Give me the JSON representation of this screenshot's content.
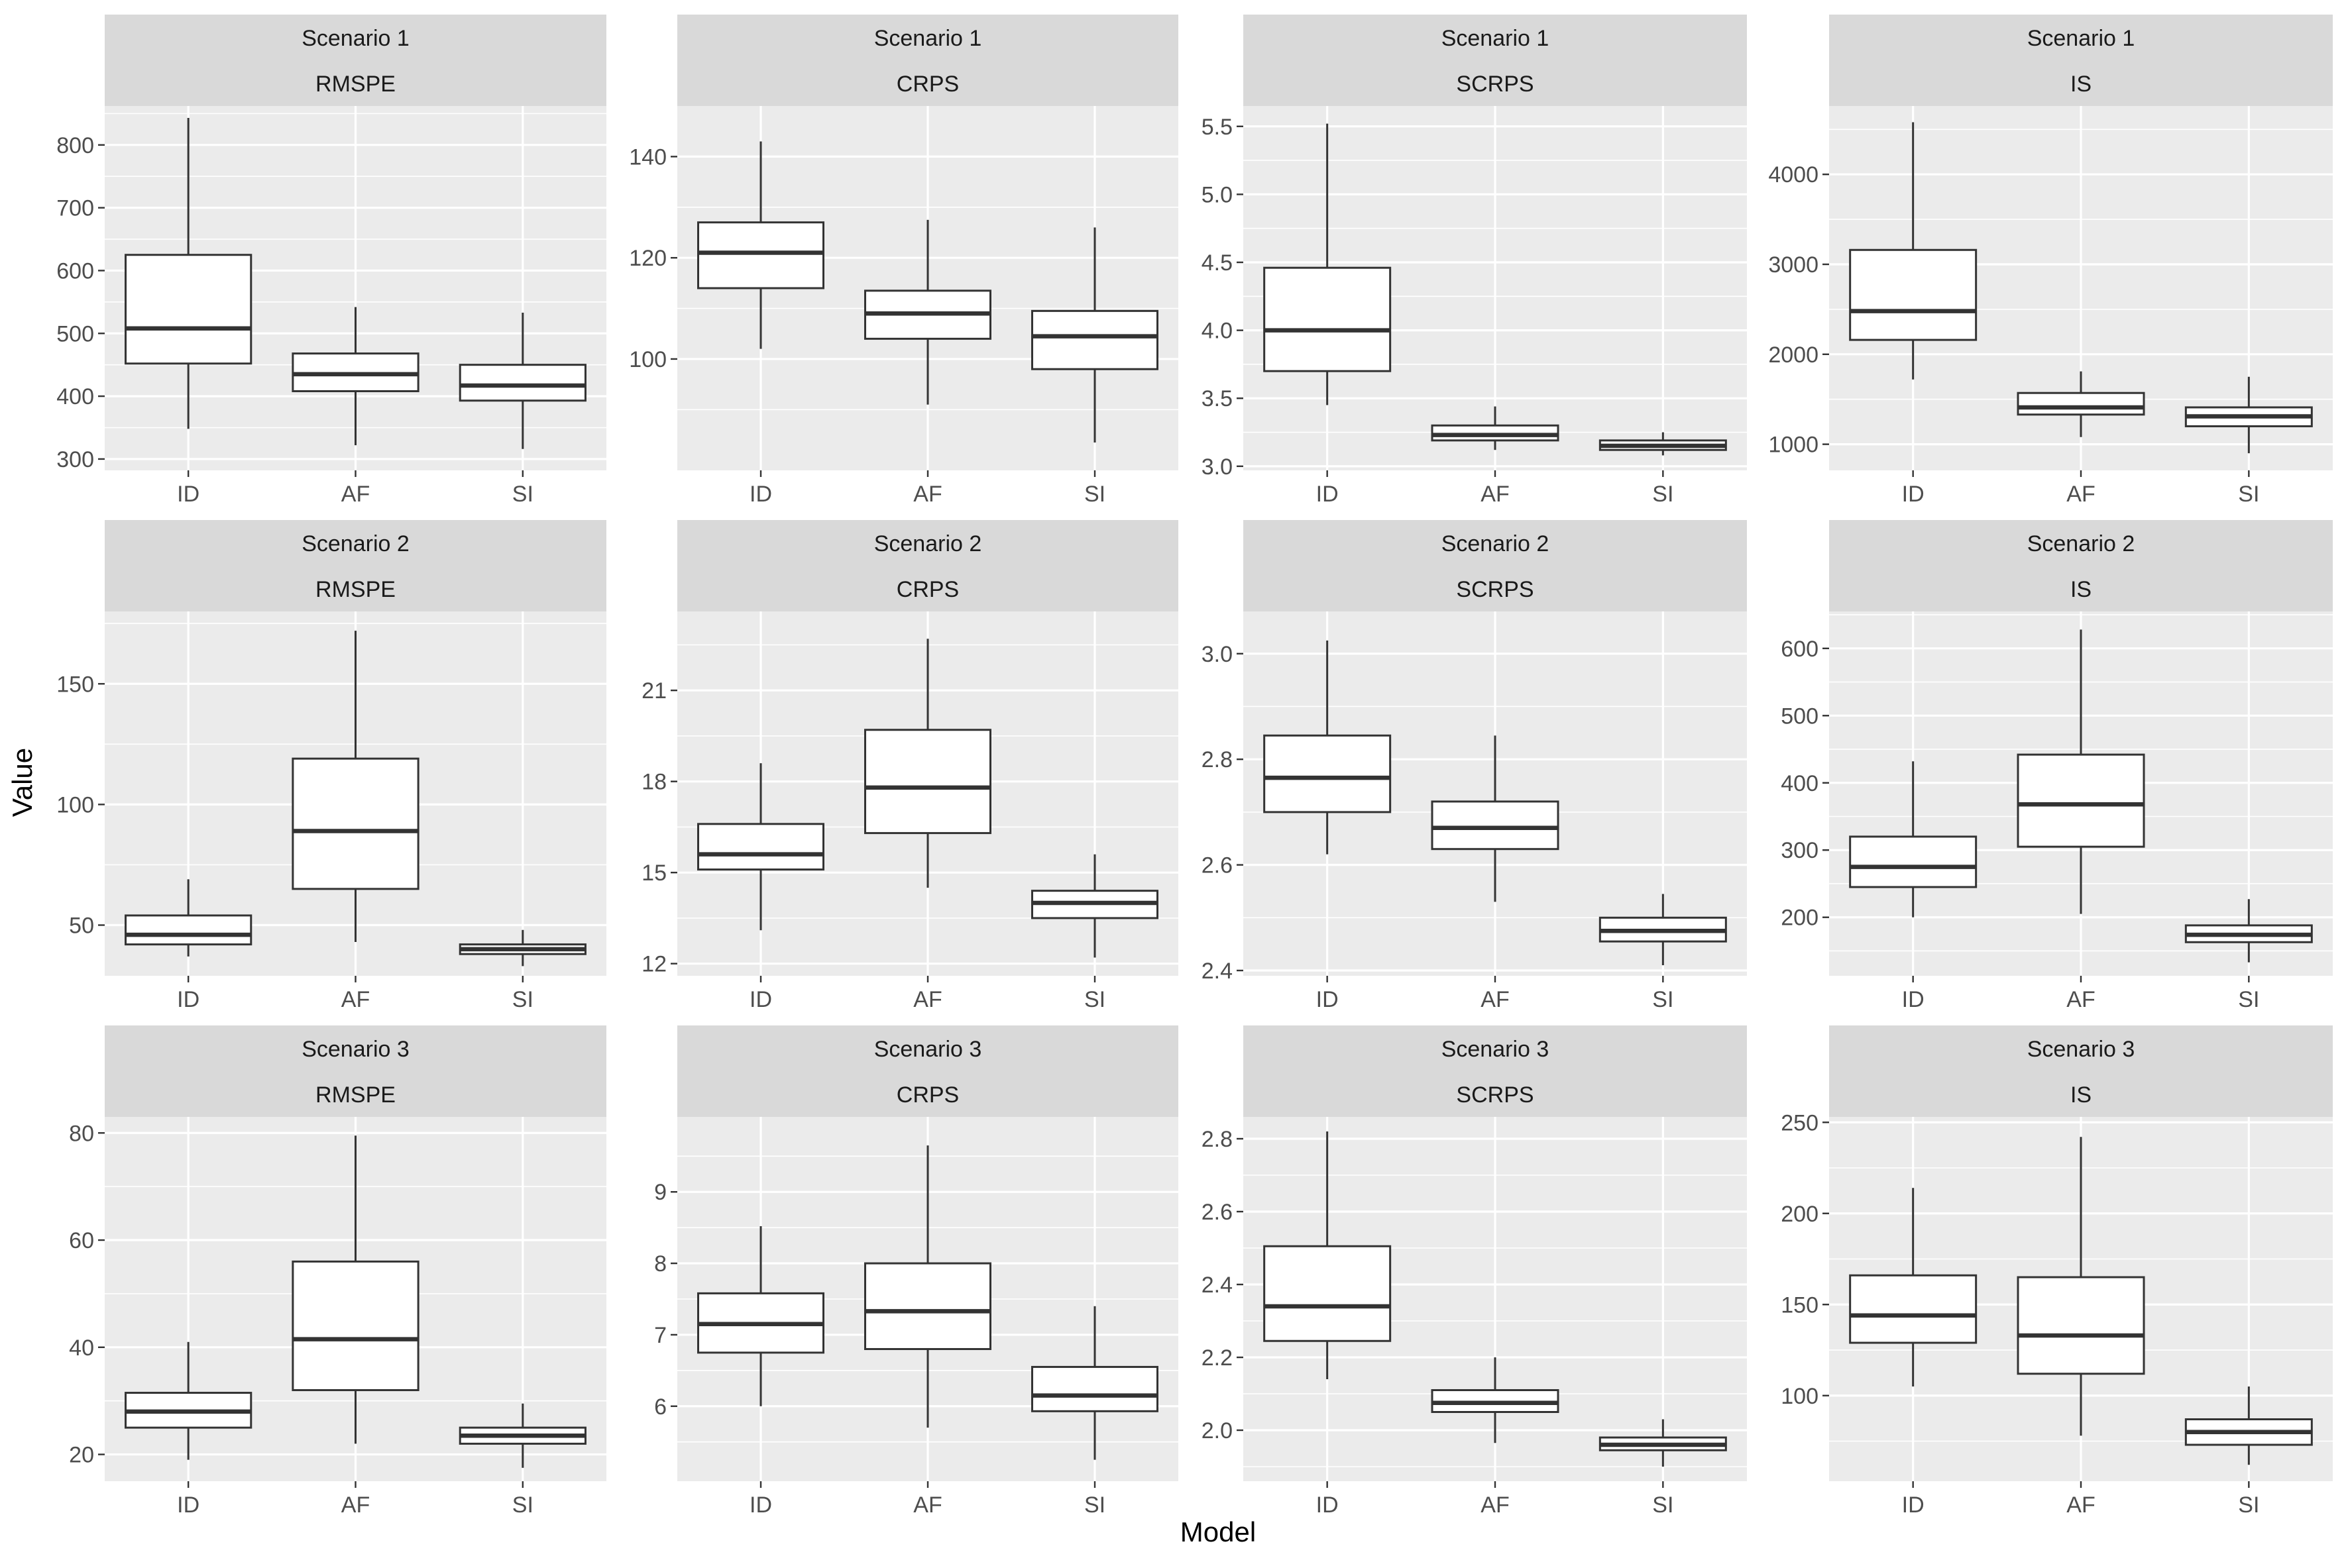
{
  "chart_data": {
    "type": "boxplot",
    "xlabel": "Model",
    "ylabel": "Value",
    "categories": [
      "ID",
      "AF",
      "SI"
    ],
    "panels": [
      {
        "scenario": "Scenario 1",
        "metric": "RMSPE",
        "ylim": [
          282,
          862
        ],
        "ticks": [
          300,
          400,
          500,
          600,
          700,
          800
        ],
        "tick_labels": [
          "300",
          "400",
          "500",
          "600",
          "700",
          "800"
        ],
        "boxes": [
          {
            "model": "ID",
            "min": 348,
            "q1": 452,
            "median": 508,
            "q3": 625,
            "max": 843
          },
          {
            "model": "AF",
            "min": 322,
            "q1": 408,
            "median": 435,
            "q3": 468,
            "max": 542
          },
          {
            "model": "SI",
            "min": 316,
            "q1": 393,
            "median": 417,
            "q3": 450,
            "max": 533
          }
        ]
      },
      {
        "scenario": "Scenario 1",
        "metric": "CRPS",
        "ylim": [
          78,
          150
        ],
        "ticks": [
          100,
          120,
          140
        ],
        "tick_labels": [
          "100",
          "120",
          "140"
        ],
        "boxes": [
          {
            "model": "ID",
            "min": 102,
            "q1": 114,
            "median": 121,
            "q3": 127,
            "max": 143
          },
          {
            "model": "AF",
            "min": 91,
            "q1": 104,
            "median": 109,
            "q3": 113.5,
            "max": 127.5
          },
          {
            "model": "SI",
            "min": 83.5,
            "q1": 98,
            "median": 104.5,
            "q3": 109.5,
            "max": 126
          }
        ]
      },
      {
        "scenario": "Scenario 1",
        "metric": "SCRPS",
        "ylim": [
          2.97,
          5.65
        ],
        "ticks": [
          3.0,
          3.5,
          4.0,
          4.5,
          5.0,
          5.5
        ],
        "tick_labels": [
          "3.0",
          "3.5",
          "4.0",
          "4.5",
          "5.0",
          "5.5"
        ],
        "boxes": [
          {
            "model": "ID",
            "min": 3.45,
            "q1": 3.7,
            "median": 4.0,
            "q3": 4.46,
            "max": 5.52
          },
          {
            "model": "AF",
            "min": 3.12,
            "q1": 3.19,
            "median": 3.23,
            "q3": 3.3,
            "max": 3.44
          },
          {
            "model": "SI",
            "min": 3.08,
            "q1": 3.12,
            "median": 3.15,
            "q3": 3.19,
            "max": 3.25
          }
        ]
      },
      {
        "scenario": "Scenario 1",
        "metric": "IS",
        "ylim": [
          710,
          4760
        ],
        "ticks": [
          1000,
          2000,
          3000,
          4000
        ],
        "tick_labels": [
          "1000",
          "2000",
          "3000",
          "4000"
        ],
        "boxes": [
          {
            "model": "ID",
            "min": 1720,
            "q1": 2160,
            "median": 2480,
            "q3": 3160,
            "max": 4580
          },
          {
            "model": "AF",
            "min": 1080,
            "q1": 1330,
            "median": 1410,
            "q3": 1570,
            "max": 1810
          },
          {
            "model": "SI",
            "min": 900,
            "q1": 1200,
            "median": 1310,
            "q3": 1410,
            "max": 1750
          }
        ]
      },
      {
        "scenario": "Scenario 2",
        "metric": "RMSPE",
        "ylim": [
          29,
          180
        ],
        "ticks": [
          50,
          100,
          150
        ],
        "tick_labels": [
          "50",
          "100",
          "150"
        ],
        "boxes": [
          {
            "model": "ID",
            "min": 37,
            "q1": 42,
            "median": 46,
            "q3": 54,
            "max": 69
          },
          {
            "model": "AF",
            "min": 43,
            "q1": 65,
            "median": 89,
            "q3": 119,
            "max": 172
          },
          {
            "model": "SI",
            "min": 33,
            "q1": 38,
            "median": 40,
            "q3": 42,
            "max": 48
          }
        ]
      },
      {
        "scenario": "Scenario 2",
        "metric": "CRPS",
        "ylim": [
          11.6,
          23.6
        ],
        "ticks": [
          12,
          15,
          18,
          21
        ],
        "tick_labels": [
          "12",
          "15",
          "18",
          "21"
        ],
        "boxes": [
          {
            "model": "ID",
            "min": 13.1,
            "q1": 15.1,
            "median": 15.6,
            "q3": 16.6,
            "max": 18.6
          },
          {
            "model": "AF",
            "min": 14.5,
            "q1": 16.3,
            "median": 17.8,
            "q3": 19.7,
            "max": 22.7
          },
          {
            "model": "SI",
            "min": 12.2,
            "q1": 13.5,
            "median": 14.0,
            "q3": 14.4,
            "max": 15.6
          }
        ]
      },
      {
        "scenario": "Scenario 2",
        "metric": "SCRPS",
        "ylim": [
          2.39,
          3.08
        ],
        "ticks": [
          2.4,
          2.6,
          2.8,
          3.0
        ],
        "tick_labels": [
          "2.4",
          "2.6",
          "2.8",
          "3.0"
        ],
        "boxes": [
          {
            "model": "ID",
            "min": 2.62,
            "q1": 2.7,
            "median": 2.765,
            "q3": 2.845,
            "max": 3.025
          },
          {
            "model": "AF",
            "min": 2.53,
            "q1": 2.63,
            "median": 2.67,
            "q3": 2.72,
            "max": 2.845
          },
          {
            "model": "SI",
            "min": 2.41,
            "q1": 2.455,
            "median": 2.475,
            "q3": 2.5,
            "max": 2.545
          }
        ]
      },
      {
        "scenario": "Scenario 2",
        "metric": "IS",
        "ylim": [
          113,
          655
        ],
        "ticks": [
          200,
          300,
          400,
          500,
          600
        ],
        "tick_labels": [
          "200",
          "300",
          "400",
          "500",
          "600"
        ],
        "boxes": [
          {
            "model": "ID",
            "min": 200,
            "q1": 245,
            "median": 275,
            "q3": 320,
            "max": 432
          },
          {
            "model": "AF",
            "min": 205,
            "q1": 305,
            "median": 368,
            "q3": 442,
            "max": 628
          },
          {
            "model": "SI",
            "min": 133,
            "q1": 163,
            "median": 174,
            "q3": 188,
            "max": 227
          }
        ]
      },
      {
        "scenario": "Scenario 3",
        "metric": "RMSPE",
        "ylim": [
          15,
          83
        ],
        "ticks": [
          20,
          40,
          60,
          80
        ],
        "tick_labels": [
          "20",
          "40",
          "60",
          "80"
        ],
        "boxes": [
          {
            "model": "ID",
            "min": 19,
            "q1": 25,
            "median": 28,
            "q3": 31.5,
            "max": 41
          },
          {
            "model": "AF",
            "min": 22,
            "q1": 32,
            "median": 41.5,
            "q3": 56,
            "max": 79.5
          },
          {
            "model": "SI",
            "min": 17.5,
            "q1": 22,
            "median": 23.5,
            "q3": 25,
            "max": 29.5
          }
        ]
      },
      {
        "scenario": "Scenario 3",
        "metric": "CRPS",
        "ylim": [
          4.95,
          10.05
        ],
        "ticks": [
          6,
          7,
          8,
          9
        ],
        "tick_labels": [
          "6",
          "7",
          "8",
          "9"
        ],
        "boxes": [
          {
            "model": "ID",
            "min": 6.0,
            "q1": 6.75,
            "median": 7.15,
            "q3": 7.58,
            "max": 8.52
          },
          {
            "model": "AF",
            "min": 5.7,
            "q1": 6.8,
            "median": 7.33,
            "q3": 8.0,
            "max": 9.65
          },
          {
            "model": "SI",
            "min": 5.25,
            "q1": 5.93,
            "median": 6.15,
            "q3": 6.55,
            "max": 7.4
          }
        ]
      },
      {
        "scenario": "Scenario 3",
        "metric": "SCRPS",
        "ylim": [
          1.86,
          2.86
        ],
        "ticks": [
          2.0,
          2.2,
          2.4,
          2.6,
          2.8
        ],
        "tick_labels": [
          "2.0",
          "2.2",
          "2.4",
          "2.6",
          "2.8"
        ],
        "boxes": [
          {
            "model": "ID",
            "min": 2.14,
            "q1": 2.245,
            "median": 2.34,
            "q3": 2.505,
            "max": 2.82
          },
          {
            "model": "AF",
            "min": 1.965,
            "q1": 2.05,
            "median": 2.075,
            "q3": 2.11,
            "max": 2.2
          },
          {
            "model": "SI",
            "min": 1.9,
            "q1": 1.945,
            "median": 1.96,
            "q3": 1.98,
            "max": 2.03
          }
        ]
      },
      {
        "scenario": "Scenario 3",
        "metric": "IS",
        "ylim": [
          53,
          253
        ],
        "ticks": [
          100,
          150,
          200,
          250
        ],
        "tick_labels": [
          "100",
          "150",
          "200",
          "250"
        ],
        "boxes": [
          {
            "model": "ID",
            "min": 105,
            "q1": 129,
            "median": 144,
            "q3": 166,
            "max": 214
          },
          {
            "model": "AF",
            "min": 78,
            "q1": 112,
            "median": 133,
            "q3": 165,
            "max": 242
          },
          {
            "model": "SI",
            "min": 62,
            "q1": 73,
            "median": 80,
            "q3": 87,
            "max": 105
          }
        ]
      }
    ]
  }
}
